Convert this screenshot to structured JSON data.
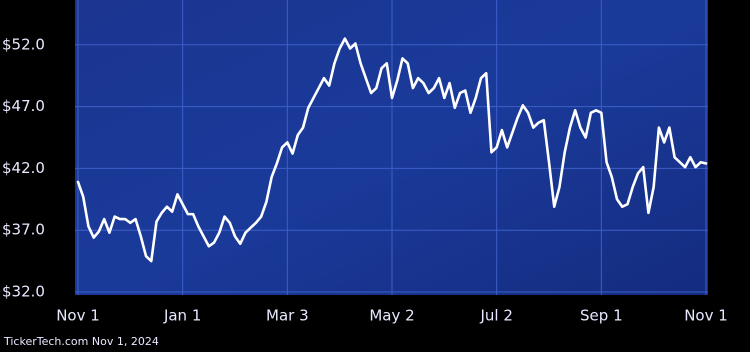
{
  "chart_data": {
    "type": "line",
    "categories": [
      "Nov 1",
      null,
      null,
      null,
      null,
      null,
      null,
      null,
      null,
      null,
      null,
      null,
      null,
      null,
      null,
      null,
      null,
      null,
      null,
      null,
      "Jan 1",
      null,
      null,
      null,
      null,
      null,
      null,
      null,
      null,
      null,
      null,
      null,
      null,
      null,
      null,
      null,
      null,
      null,
      null,
      null,
      "Mar 3",
      null,
      null,
      null,
      null,
      null,
      null,
      null,
      null,
      null,
      null,
      null,
      null,
      null,
      null,
      null,
      null,
      null,
      null,
      null,
      "May 2",
      null,
      null,
      null,
      null,
      null,
      null,
      null,
      null,
      null,
      null,
      null,
      null,
      null,
      null,
      null,
      null,
      null,
      null,
      null,
      "Jul 2",
      null,
      null,
      null,
      null,
      null,
      null,
      null,
      null,
      null,
      null,
      null,
      null,
      null,
      null,
      null,
      null,
      null,
      null,
      null,
      "Sep 1",
      null,
      null,
      null,
      null,
      null,
      null,
      null,
      null,
      null,
      null,
      null,
      null,
      null,
      null,
      null,
      null,
      null,
      null,
      null,
      "Nov 1"
    ],
    "series": [
      {
        "color": "#ffffff",
        "values": [
          40.9,
          39.7,
          37.3,
          36.4,
          36.9,
          37.9,
          36.8,
          38.1,
          37.9,
          37.9,
          37.6,
          37.9,
          36.5,
          34.9,
          34.5,
          37.7,
          38.4,
          38.9,
          38.5,
          39.9,
          39.1,
          38.3,
          38.3,
          37.3,
          36.5,
          35.7,
          36.0,
          36.8,
          38.1,
          37.6,
          36.5,
          35.9,
          36.8,
          37.2,
          37.6,
          38.1,
          39.3,
          41.3,
          42.4,
          43.7,
          44.1,
          43.2,
          44.7,
          45.3,
          46.9,
          47.7,
          48.5,
          49.3,
          48.7,
          50.5,
          51.7,
          52.5,
          51.7,
          52.1,
          50.5,
          49.3,
          48.1,
          48.5,
          50.1,
          50.5,
          47.7,
          49.1,
          50.9,
          50.5,
          48.5,
          49.3,
          48.9,
          48.1,
          48.5,
          49.3,
          47.7,
          48.9,
          46.9,
          48.1,
          48.3,
          46.5,
          47.7,
          49.3,
          49.7,
          43.3,
          43.7,
          45.1,
          43.7,
          44.9,
          46.1,
          47.1,
          46.5,
          45.3,
          45.7,
          45.9,
          42.5,
          38.9,
          40.5,
          43.3,
          45.3,
          46.7,
          45.3,
          44.5,
          46.5,
          46.7,
          46.5,
          42.5,
          41.3,
          39.5,
          38.9,
          39.1,
          40.5,
          41.6,
          42.1,
          38.4,
          40.5,
          45.3,
          44.1,
          45.3,
          42.9,
          42.5,
          42.1,
          42.9,
          42.1,
          42.5,
          42.4
        ]
      }
    ],
    "ylim": [
      32,
      55.3
    ],
    "yticks": [
      {
        "value": 32,
        "label": "$32.0"
      },
      {
        "value": 37,
        "label": "$37.0"
      },
      {
        "value": 42,
        "label": "$42.0"
      },
      {
        "value": 47,
        "label": "$47.0"
      },
      {
        "value": 52,
        "label": "$52.0"
      }
    ],
    "grid": true,
    "footer": "TickerTech.com  Nov 1, 2024"
  }
}
